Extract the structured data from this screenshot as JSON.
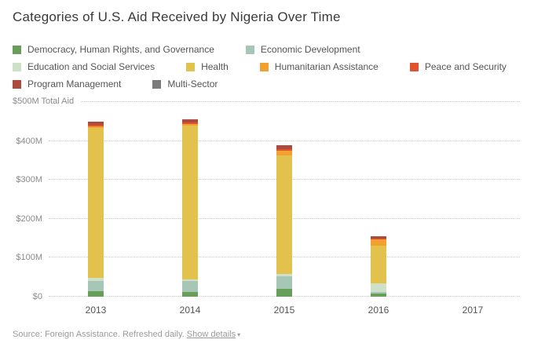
{
  "page": {
    "title": "Categories of U.S. Aid Received by Nigeria Over Time"
  },
  "footer": {
    "source_text": "Source: Foreign Assistance. Refreshed daily.",
    "link_label": "Show details",
    "link_caret": "▾"
  },
  "chart_data": {
    "type": "bar",
    "stacked": true,
    "title": "Categories of U.S. Aid Received by Nigeria Over Time",
    "xlabel": "",
    "ylabel": "Total Aid ($M)",
    "categories": [
      "2013",
      "2014",
      "2015",
      "2016",
      "2017"
    ],
    "series": [
      {
        "name": "Democracy, Human Rights, and Governance",
        "color": "#669e5a",
        "values": [
          15,
          12,
          20,
          8,
          0
        ]
      },
      {
        "name": "Economic Development",
        "color": "#a6c7b6",
        "values": [
          25,
          28,
          33,
          4,
          0
        ]
      },
      {
        "name": "Education and Social Services",
        "color": "#cfe0c8",
        "values": [
          8,
          5,
          5,
          22,
          0
        ]
      },
      {
        "name": "Health",
        "color": "#e2c14c",
        "values": [
          385,
          395,
          305,
          98,
          0
        ]
      },
      {
        "name": "Humanitarian Assistance",
        "color": "#f2a12e",
        "values": [
          5,
          4,
          12,
          15,
          0
        ]
      },
      {
        "name": "Peace and Security",
        "color": "#e0532f",
        "values": [
          4,
          4,
          5,
          3,
          0
        ]
      },
      {
        "name": "Program Management",
        "color": "#ad4a3e",
        "values": [
          8,
          8,
          10,
          5,
          0
        ]
      },
      {
        "name": "Multi-Sector",
        "color": "#7a7a7a",
        "values": [
          0,
          0,
          0,
          0,
          0
        ]
      }
    ],
    "totals": [
      450,
      456,
      390,
      155,
      0
    ],
    "ylim": [
      0,
      500
    ],
    "yticks": [
      "$0",
      "$100M",
      "$200M",
      "$300M",
      "$400M"
    ],
    "ytop_label": "$500M Total Aid",
    "grid": "horizontal dotted",
    "legend_position": "top"
  }
}
